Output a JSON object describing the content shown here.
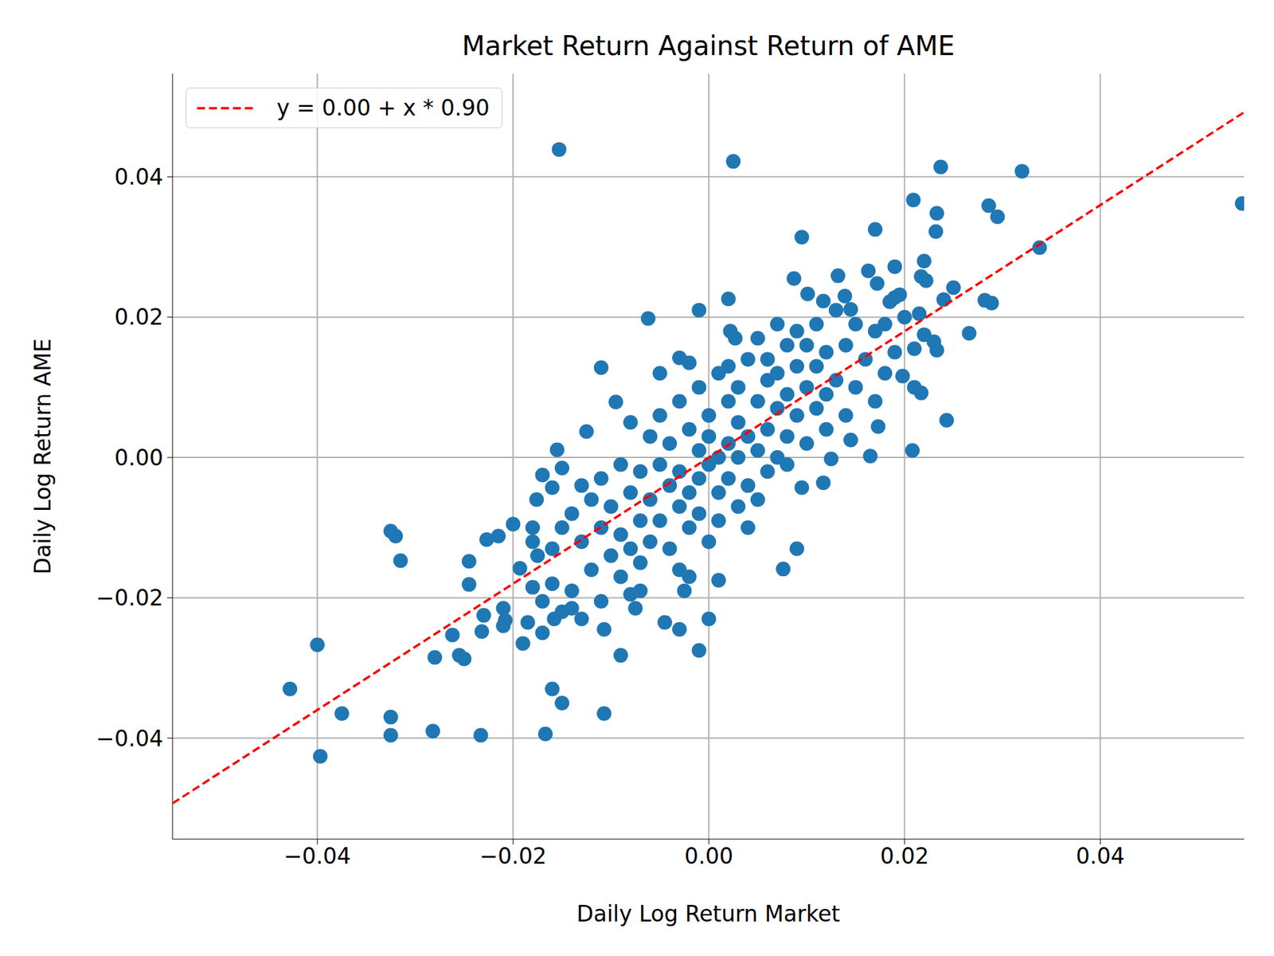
{
  "chart_data": {
    "type": "scatter",
    "title": "Market Return Against Return of AME",
    "x_label": "Daily Log Return Market",
    "y_label": "Daily Log Return AME",
    "xlim": [
      -0.0548,
      0.0547
    ],
    "ylim": [
      -0.0544,
      0.0547
    ],
    "xticks": [
      {
        "value": -0.04,
        "label": "−0.04"
      },
      {
        "value": -0.02,
        "label": "−0.02"
      },
      {
        "value": 0,
        "label": "0.00"
      },
      0.02,
      0.04
    ],
    "yticks": [
      {
        "value": -0.04,
        "label": "−0.04"
      },
      {
        "value": -0.02,
        "label": "−0.02"
      },
      {
        "value": 0,
        "label": "0.00"
      },
      0.02,
      0.04
    ],
    "grid": true,
    "legend": "upper left",
    "series": [
      {
        "type": "scatter",
        "color": "#1f77b4",
        "marker": "circle",
        "x": [
          -0.0153,
          0.0025,
          0.0237,
          0.032,
          0.0545,
          0.0209,
          0.0286,
          0.0295,
          0.0233,
          0.0232,
          0.017,
          0.0095,
          0.0338,
          0.022,
          0.019,
          0.0217,
          0.0222,
          0.0163,
          0.0132,
          0.0087,
          0.0172,
          0.025,
          0.024,
          0.0282,
          0.0289,
          0.019,
          0.0185,
          0.0195,
          0.0101,
          0.0117,
          0.0139,
          0.0145,
          0.002,
          -0.001,
          -0.0062,
          0.0215,
          0.02,
          0.018,
          0.023,
          0.0233,
          0.021,
          0.022,
          0.0266,
          0.0198,
          0.021,
          0.0217,
          0.0243,
          0.0208,
          0.0165,
          0.0173,
          0.0145,
          0.0117,
          0.0125,
          0.0095,
          0.009,
          0.0076,
          0.0022,
          0.0027,
          -0.002,
          -0.003,
          -0.011,
          -0.0125,
          -0.0095,
          -0.0155,
          -0.015,
          -0.016,
          -0.017,
          -0.0176,
          -0.02,
          -0.0215,
          -0.0227,
          -0.0193,
          -0.018,
          -0.0175,
          -0.018,
          -0.017,
          -0.016,
          -0.0158,
          -0.017,
          -0.015,
          -0.014,
          -0.013,
          -0.019,
          -0.0185,
          -0.021,
          -0.0208,
          -0.021,
          -0.023,
          -0.0232,
          -0.0245,
          -0.0245,
          -0.0262,
          -0.0255,
          -0.025,
          -0.028,
          -0.0282,
          -0.0233,
          -0.0167,
          -0.0107,
          -0.016,
          -0.015,
          -0.009,
          -0.0107,
          -0.011,
          -0.001,
          -0.003,
          -0.0045,
          0,
          0.001,
          -0.002,
          -0.0025,
          -0.0075,
          -0.008,
          -0.007,
          -0.0325,
          -0.032,
          -0.0315,
          -0.0325,
          -0.0325,
          -0.0375,
          -0.04,
          -0.0428,
          -0.0397,
          -0.014,
          -0.013,
          -0.012,
          -0.012,
          -0.011,
          -0.011,
          -0.01,
          -0.01,
          -0.009,
          -0.009,
          -0.009,
          -0.008,
          -0.008,
          -0.008,
          -0.007,
          -0.007,
          -0.007,
          -0.006,
          -0.006,
          -0.006,
          -0.005,
          -0.005,
          -0.005,
          -0.005,
          -0.004,
          -0.004,
          -0.004,
          -0.003,
          -0.003,
          -0.003,
          -0.003,
          -0.002,
          -0.002,
          -0.002,
          -0.001,
          -0.001,
          -0.001,
          -0.001,
          0,
          0,
          0,
          0,
          0.001,
          0.001,
          0.001,
          0.001,
          0.002,
          0.002,
          0.002,
          0.002,
          0.003,
          0.003,
          0.003,
          0.003,
          0.004,
          0.004,
          0.004,
          0.004,
          0.005,
          0.005,
          0.005,
          0.005,
          0.006,
          0.006,
          0.006,
          0.006,
          0.007,
          0.007,
          0.007,
          0.007,
          0.008,
          0.008,
          0.008,
          0.008,
          0.009,
          0.009,
          0.009,
          0.01,
          0.01,
          0.01,
          0.011,
          0.011,
          0.011,
          0.012,
          0.012,
          0.012,
          0.013,
          0.013,
          0.014,
          0.014,
          0.015,
          0.015,
          0.016,
          0.017,
          0.017,
          0.018,
          0.019,
          -0.013,
          -0.015,
          -0.016,
          -0.018,
          -0.014
        ],
        "values": [
          0.0439,
          0.0422,
          0.0414,
          0.0408,
          0.0362,
          0.0367,
          0.0359,
          0.0343,
          0.0348,
          0.0322,
          0.0325,
          0.0314,
          0.0299,
          0.028,
          0.0272,
          0.0258,
          0.0252,
          0.0266,
          0.0259,
          0.0255,
          0.0248,
          0.0242,
          0.0225,
          0.0224,
          0.022,
          0.0228,
          0.0222,
          0.0232,
          0.0233,
          0.0223,
          0.023,
          0.0211,
          0.0226,
          0.021,
          0.0198,
          0.0205,
          0.02,
          0.019,
          0.0165,
          0.0153,
          0.0155,
          0.0175,
          0.0177,
          0.0116,
          0.01,
          0.0092,
          0.0053,
          0.001,
          0.0002,
          0.0044,
          0.0025,
          -0.0036,
          -0.0002,
          -0.0043,
          -0.013,
          -0.0159,
          0.018,
          0.017,
          0.0135,
          0.0142,
          0.0128,
          0.0037,
          0.0079,
          0.0011,
          -0.0015,
          -0.0043,
          -0.0025,
          -0.006,
          -0.0095,
          -0.0112,
          -0.0117,
          -0.0158,
          -0.012,
          -0.014,
          -0.0185,
          -0.0205,
          -0.018,
          -0.023,
          -0.025,
          -0.022,
          -0.0215,
          -0.023,
          -0.0265,
          -0.0235,
          -0.0215,
          -0.0232,
          -0.024,
          -0.0225,
          -0.0248,
          -0.0148,
          -0.0181,
          -0.0253,
          -0.0282,
          -0.0287,
          -0.0285,
          -0.039,
          -0.0396,
          -0.0394,
          -0.0365,
          -0.033,
          -0.035,
          -0.0282,
          -0.0245,
          -0.0205,
          -0.0275,
          -0.0245,
          -0.0235,
          -0.023,
          -0.0175,
          -0.017,
          -0.019,
          -0.0215,
          -0.0195,
          -0.019,
          -0.0105,
          -0.0112,
          -0.0147,
          -0.037,
          -0.0396,
          -0.0365,
          -0.0267,
          -0.033,
          -0.0426,
          -0.008,
          -0.012,
          -0.006,
          -0.016,
          -0.01,
          -0.003,
          -0.014,
          -0.007,
          -0.001,
          -0.011,
          -0.017,
          -0.005,
          -0.013,
          0.005,
          -0.009,
          -0.002,
          -0.015,
          0.003,
          -0.006,
          -0.012,
          0.012,
          -0.001,
          -0.009,
          0.006,
          -0.004,
          -0.013,
          0.002,
          0.008,
          -0.007,
          -0.002,
          -0.016,
          0.004,
          -0.005,
          -0.01,
          0.01,
          0.001,
          -0.003,
          -0.008,
          0.006,
          -0.001,
          -0.012,
          0.003,
          0.012,
          -0.005,
          0,
          -0.009,
          0.008,
          0.002,
          -0.003,
          0.013,
          0.005,
          -0.007,
          0.01,
          0,
          0.003,
          0.014,
          -0.004,
          -0.01,
          0.008,
          0.001,
          0.017,
          -0.006,
          0.011,
          0.004,
          -0.002,
          0.014,
          0.007,
          0.019,
          0,
          0.012,
          0.016,
          0.003,
          0.009,
          -0.001,
          0.013,
          0.006,
          0.018,
          0.01,
          0.002,
          0.016,
          0.007,
          0.019,
          0.013,
          0.004,
          0.015,
          0.009,
          0.021,
          0.011,
          0.006,
          0.016,
          0.019,
          0.01,
          0.014,
          0.018,
          0.008,
          0.012,
          0.015,
          -0.004,
          -0.01,
          -0.013,
          -0.01,
          -0.019
        ]
      },
      {
        "type": "line",
        "name": "y = 0.00 + x * 0.90",
        "color": "#ff0000",
        "line_style": "dashed",
        "x": [
          -0.0548,
          0.0547
        ],
        "values": [
          -0.0493,
          0.0492
        ]
      }
    ]
  }
}
